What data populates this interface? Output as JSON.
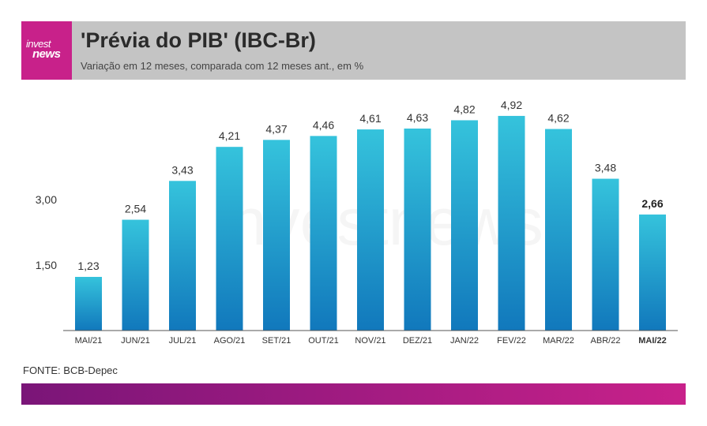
{
  "brand": {
    "logo_line1": "invest",
    "logo_line2": "news",
    "watermark": "investnews"
  },
  "colors": {
    "brand_magenta": "#c8218a",
    "brand_purple": "#7a1578",
    "bar_top": "#35c3dc",
    "bar_bottom": "#1178bc"
  },
  "header": {
    "title": "'Prévia do PIB' (IBC-Br)",
    "subtitle": "Variação em 12 meses, comparada com 12 meses ant., em %"
  },
  "source": "FONTE: BCB-Depec",
  "chart_data": {
    "type": "bar",
    "title": "'Prévia do PIB' (IBC-Br)",
    "subtitle": "Variação em 12 meses, comparada com 12 meses ant., em %",
    "categories": [
      "MAI/21",
      "JUN/21",
      "JUL/21",
      "AGO/21",
      "SET/21",
      "OUT/21",
      "NOV/21",
      "DEZ/21",
      "JAN/22",
      "FEV/22",
      "MAR/22",
      "ABR/22",
      "MAI/22"
    ],
    "values": [
      1.23,
      2.54,
      3.43,
      4.21,
      4.37,
      4.46,
      4.61,
      4.63,
      4.82,
      4.92,
      4.62,
      3.48,
      2.66
    ],
    "value_labels": [
      "1,23",
      "2,54",
      "3,43",
      "4,21",
      "4,37",
      "4,46",
      "4,61",
      "4,63",
      "4,82",
      "4,92",
      "4,62",
      "3,48",
      "2,66"
    ],
    "y_ticks": [
      1.5,
      3.0
    ],
    "y_tick_labels": [
      "1,50",
      "3,00"
    ],
    "ylim": [
      0,
      5
    ],
    "highlight": "MAI/22",
    "grid": false,
    "xlabel": "",
    "ylabel": ""
  }
}
